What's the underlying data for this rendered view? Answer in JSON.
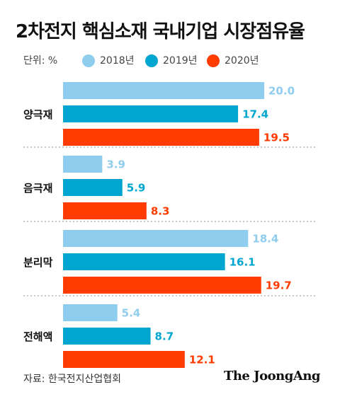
{
  "title": "2차전지 핵심소재 국내기업 시장점유율",
  "unit_label": "단위: %",
  "source": "자료: 한국전지산업협회",
  "publisher": "The JoongAng",
  "colors": {
    "2018년": "#8fcdee",
    "2019년": "#00a6cf",
    "2020년": "#ff3b00",
    "separator": "#b5b5b5"
  },
  "chart_data": {
    "type": "bar",
    "orientation": "horizontal",
    "categories": [
      "양극재",
      "음극재",
      "분리막",
      "전해액"
    ],
    "series": [
      {
        "name": "2018년",
        "values": [
          20.0,
          3.9,
          18.4,
          5.4
        ]
      },
      {
        "name": "2019년",
        "values": [
          17.4,
          5.9,
          16.1,
          8.7
        ]
      },
      {
        "name": "2020년",
        "values": [
          19.5,
          8.3,
          19.7,
          12.1
        ]
      }
    ],
    "value_labels": [
      [
        "20.0",
        "3.9",
        "18.4",
        "5.4"
      ],
      [
        "17.4",
        "5.9",
        "16.1",
        "8.7"
      ],
      [
        "19.5",
        "8.3",
        "19.7",
        "12.1"
      ]
    ],
    "title": "2차전지 핵심소재 국내기업 시장점유율",
    "xlabel": "",
    "ylabel": "",
    "xlim": [
      0,
      21
    ],
    "grid": false,
    "legend_position": "top"
  }
}
